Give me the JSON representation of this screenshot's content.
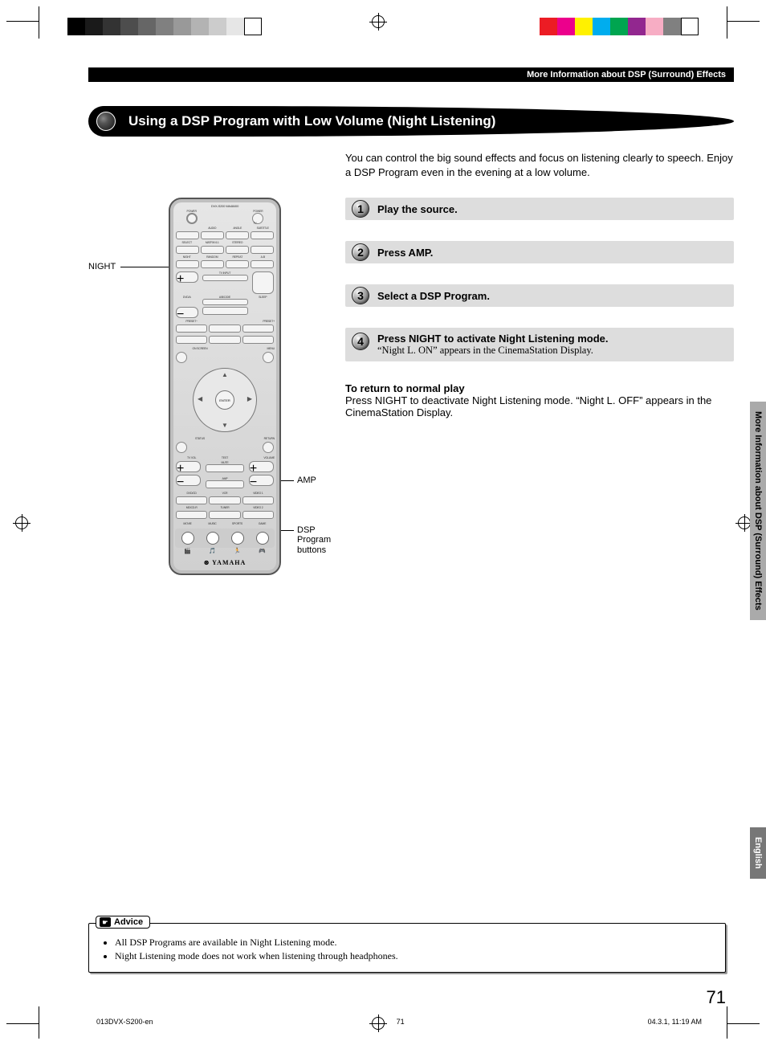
{
  "header": {
    "breadcrumb": "More Information about DSP (Surround) Effects"
  },
  "section": {
    "title": "Using a DSP Program with Low Volume (Night Listening)"
  },
  "intro": "You can control the big sound effects and focus on listening clearly to speech. Enjoy a DSP Program even in the evening at a low volume.",
  "remote_labels": {
    "night": "NIGHT",
    "amp": "AMP",
    "dsp": "DSP Program buttons"
  },
  "remote": {
    "model": "DVX-S200 WA48400",
    "power": "POWER",
    "tv": "TV",
    "top_labels": [
      "AUDIO",
      "ANGLE",
      "SUBTITLE"
    ],
    "row2_labels": [
      "SELECT",
      "MATRIX 6.1",
      "STEREO"
    ],
    "row3_labels": [
      "NIGHT",
      "RANDOM",
      "REPEAT",
      "A-B"
    ],
    "tv_input": "TV INPUT",
    "dvd_a": "DVD/A",
    "abcde": "A/B/C/D/E",
    "sleep": "SLEEP",
    "preset_minus": "PRESET−",
    "preset_plus": "PRESET+",
    "on_screen": "ON SCREEN",
    "menu": "MENU",
    "top_menu": "TOP MENU",
    "enter": "ENTER",
    "ch_minus": "CH −",
    "ch_plus": "CH +",
    "status": "STATUS",
    "return": "RETURN",
    "test": "TEST",
    "tv_vol": "TV VOL",
    "mute": "MUTE",
    "volume": "VOLUME",
    "amp": "AMP",
    "inputs": [
      "DVD/CD",
      "VCR",
      "VIDEO 1",
      "MD/CD-R",
      "TUNER",
      "VIDEO 2"
    ],
    "dsp_labels": [
      "MOVIE",
      "MUSIC",
      "SPORTS",
      "GAME"
    ],
    "logo": "YAMAHA"
  },
  "steps": [
    {
      "n": "1",
      "text": "Play the source."
    },
    {
      "n": "2",
      "text": "Press AMP."
    },
    {
      "n": "3",
      "text": "Select a DSP Program."
    },
    {
      "n": "4",
      "text": "Press NIGHT to activate Night Listening mode.",
      "sub": "“Night L. ON” appears in the CinemaStation Display."
    }
  ],
  "return": {
    "heading": "To return to normal play",
    "body": "Press NIGHT to deactivate Night Listening mode. “Night L. OFF” appears in the CinemaStation Display."
  },
  "side": {
    "chapter": "More Information about DSP (Surround) Effects",
    "language": "English"
  },
  "advice": {
    "label": "Advice",
    "items": [
      "All DSP Programs are available in Night Listening mode.",
      "Night Listening mode does not work when listening through headphones."
    ]
  },
  "page_number": "71",
  "footer": {
    "doc": "013DVX-S200-en",
    "page": "71",
    "timestamp": "04.3.1, 11:19 AM"
  },
  "colorbar_left": [
    "#000",
    "#1a1a1a",
    "#333",
    "#4d4d4d",
    "#666",
    "#808080",
    "#999",
    "#b3b3b3",
    "#ccc",
    "#e6e6e6",
    "#fff"
  ],
  "colorbar_right": [
    "#ec1c24",
    "#ec008c",
    "#fff100",
    "#00adee",
    "#00a550",
    "#92278f",
    "#f7adc4",
    "#808080",
    "#fff"
  ]
}
